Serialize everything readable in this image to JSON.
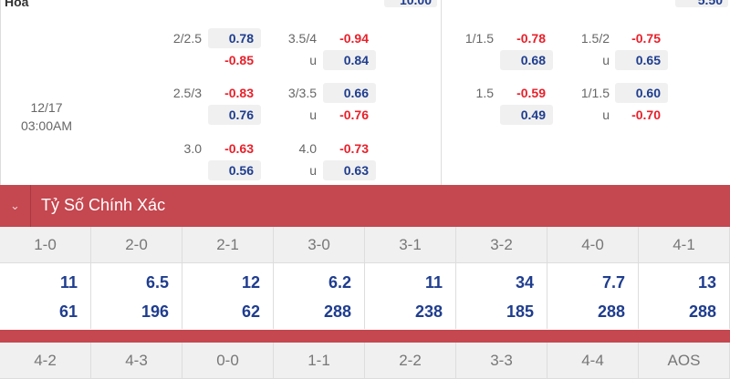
{
  "top": {
    "label": "Hòa",
    "partial_values": [
      "10.00",
      "5.50"
    ]
  },
  "match_time": {
    "date": "12/17",
    "time": "03:00AM"
  },
  "left_odds": [
    {
      "line1": "2/2.5",
      "a1": "0.78",
      "a2": "-0.85",
      "line2": "3.5/4",
      "b1": "-0.94",
      "b2": "0.84",
      "u": "u"
    },
    {
      "line1": "2.5/3",
      "a1": "-0.83",
      "a2": "0.76",
      "line2": "3/3.5",
      "b1": "0.66",
      "b2": "-0.76",
      "u": "u"
    },
    {
      "line1": "3.0",
      "a1": "-0.63",
      "a2": "0.56",
      "line2": "4.0",
      "b1": "-0.73",
      "b2": "0.63",
      "u": "u"
    }
  ],
  "right_odds": [
    {
      "line1": "1/1.5",
      "a1": "-0.78",
      "a2": "0.68",
      "line2": "1.5/2",
      "b1": "-0.75",
      "b2": "0.65",
      "u": "u"
    },
    {
      "line1": "1.5",
      "a1": "-0.59",
      "a2": "0.49",
      "line2": "1/1.5",
      "b1": "0.60",
      "b2": "-0.70",
      "u": "u"
    }
  ],
  "section": {
    "title": "Tỷ Số Chính Xác",
    "icon": "chevron-down-icon"
  },
  "scores_row1": {
    "headers": [
      "1-0",
      "2-0",
      "2-1",
      "3-0",
      "3-1",
      "3-2",
      "4-0",
      "4-1"
    ],
    "odds": [
      "11",
      "6.5",
      "12",
      "6.2",
      "11",
      "34",
      "7.7",
      "13"
    ],
    "odds2": [
      "61",
      "196",
      "62",
      "288",
      "238",
      "185",
      "288",
      "288"
    ]
  },
  "scores_row2": {
    "headers": [
      "4-2",
      "4-3",
      "0-0",
      "1-1",
      "2-2",
      "3-3",
      "4-4",
      "AOS"
    ]
  },
  "colors": {
    "accent": "#c5474f",
    "positive": "#1f3d8f",
    "negative": "#e8202a"
  }
}
